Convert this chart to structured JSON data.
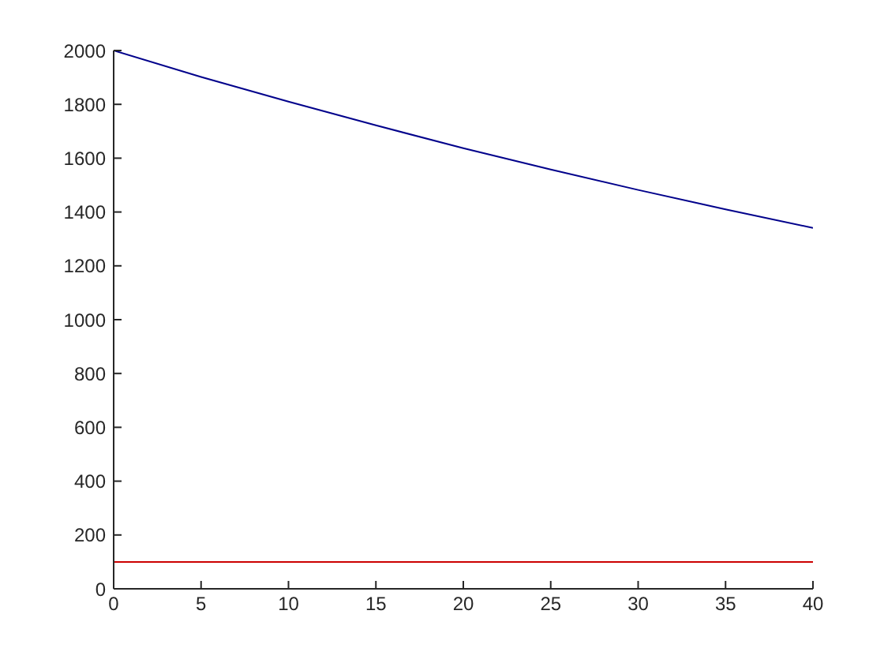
{
  "chart_data": {
    "type": "line",
    "x": [
      0,
      5,
      10,
      15,
      20,
      25,
      30,
      35,
      40
    ],
    "series": [
      {
        "color": "#00008b",
        "values": [
          2000,
          1902,
          1810,
          1722,
          1637,
          1558,
          1482,
          1410,
          1341
        ]
      },
      {
        "color": "#cc0000",
        "values": [
          100,
          100,
          100,
          100,
          100,
          100,
          100,
          100,
          100
        ]
      }
    ],
    "xlim": [
      0,
      40
    ],
    "xticks": [
      0,
      5,
      10,
      15,
      20,
      25,
      30,
      35,
      40
    ],
    "ylim": [
      0,
      2000
    ],
    "yticks": [
      0,
      200,
      400,
      600,
      800,
      1000,
      1200,
      1400,
      1600,
      1800,
      2000
    ],
    "grid": false,
    "legend": false,
    "marker": "none",
    "line_style": "solid"
  }
}
